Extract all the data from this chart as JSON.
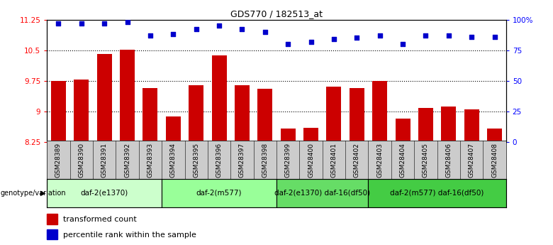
{
  "title": "GDS770 / 182513_at",
  "samples": [
    "GSM28389",
    "GSM28390",
    "GSM28391",
    "GSM28392",
    "GSM28393",
    "GSM28394",
    "GSM28395",
    "GSM28396",
    "GSM28397",
    "GSM28398",
    "GSM28399",
    "GSM28400",
    "GSM28401",
    "GSM28402",
    "GSM28403",
    "GSM28404",
    "GSM28405",
    "GSM28406",
    "GSM28407",
    "GSM28408"
  ],
  "bar_values": [
    9.75,
    9.78,
    10.4,
    10.52,
    9.58,
    8.88,
    9.65,
    10.37,
    9.65,
    9.55,
    8.58,
    8.6,
    9.6,
    9.58,
    9.75,
    8.83,
    9.08,
    9.12,
    9.05,
    8.58
  ],
  "dot_values": [
    97,
    97,
    97,
    98,
    87,
    88,
    92,
    95,
    92,
    90,
    80,
    82,
    84,
    85,
    87,
    80,
    87,
    87,
    86,
    86
  ],
  "ylim_left": [
    8.25,
    11.25
  ],
  "ylim_right": [
    0,
    100
  ],
  "yticks_left": [
    8.25,
    9.0,
    9.75,
    10.5,
    11.25
  ],
  "yticks_right": [
    0,
    25,
    50,
    75,
    100
  ],
  "ytick_labels_left": [
    "8.25",
    "9",
    "9.75",
    "10.5",
    "11.25"
  ],
  "ytick_labels_right": [
    "0",
    "25",
    "50",
    "75",
    "100%"
  ],
  "hlines": [
    9.0,
    9.75,
    10.5
  ],
  "bar_color": "#cc0000",
  "dot_color": "#0000cc",
  "groups": [
    {
      "label": "daf-2(e1370)",
      "start": 0,
      "end": 5,
      "color": "#ccffcc"
    },
    {
      "label": "daf-2(m577)",
      "start": 5,
      "end": 10,
      "color": "#99ff99"
    },
    {
      "label": "daf-2(e1370) daf-16(df50)",
      "start": 10,
      "end": 14,
      "color": "#66dd66"
    },
    {
      "label": "daf-2(m577) daf-16(df50)",
      "start": 14,
      "end": 20,
      "color": "#44cc44"
    }
  ],
  "genotype_label": "genotype/variation",
  "legend_red": "transformed count",
  "legend_blue": "percentile rank within the sample",
  "tick_bg_color": "#cccccc",
  "fig_width": 7.8,
  "fig_height": 3.45
}
